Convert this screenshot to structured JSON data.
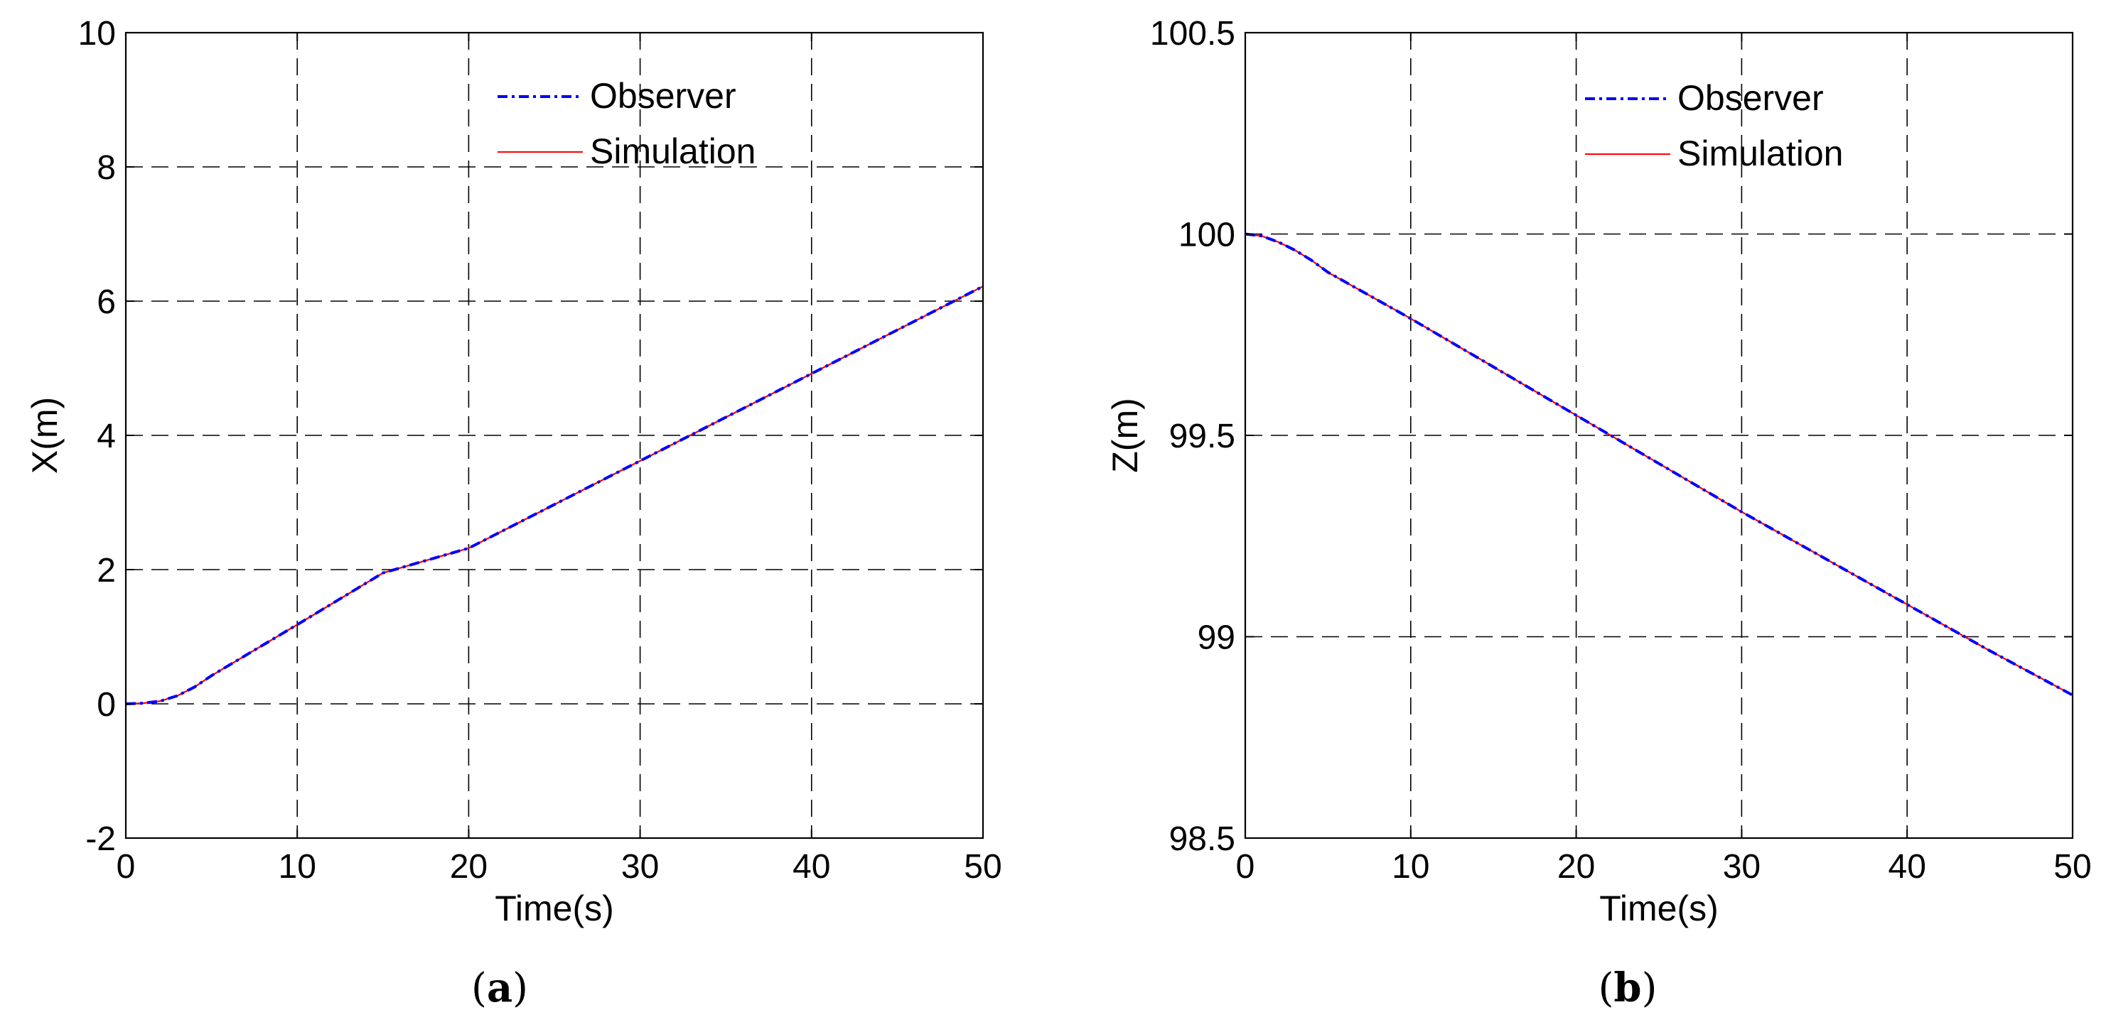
{
  "chart_data": [
    {
      "id": "a",
      "type": "line",
      "caption_letter": "a",
      "xlabel": "Time(s)",
      "ylabel": "X(m)",
      "xlim": [
        0,
        50
      ],
      "ylim": [
        -2,
        10
      ],
      "xticks": [
        0,
        10,
        20,
        30,
        40,
        50
      ],
      "yticks": [
        -2,
        0,
        2,
        4,
        6,
        8,
        10
      ],
      "grid": true,
      "legend_position": "top-right",
      "series": [
        {
          "name": "Observer",
          "color": "#0000ff",
          "style": "dash-dot",
          "x": [
            0,
            1,
            2,
            3,
            4,
            5,
            10,
            15,
            20,
            25,
            30,
            35,
            40,
            45,
            50
          ],
          "y": [
            0,
            0.01,
            0.04,
            0.12,
            0.25,
            0.42,
            1.18,
            1.95,
            2.32,
            2.97,
            3.62,
            4.27,
            4.92,
            5.57,
            6.22
          ]
        },
        {
          "name": "Simulation",
          "color": "#ff0000",
          "style": "solid",
          "x": [
            0,
            1,
            2,
            3,
            4,
            5,
            10,
            15,
            20,
            25,
            30,
            35,
            40,
            45,
            50
          ],
          "y": [
            0,
            0.01,
            0.04,
            0.12,
            0.25,
            0.42,
            1.18,
            1.95,
            2.32,
            2.97,
            3.62,
            4.27,
            4.92,
            5.57,
            6.22
          ]
        }
      ]
    },
    {
      "id": "b",
      "type": "line",
      "caption_letter": "b",
      "xlabel": "Time(s)",
      "ylabel": "Z(m)",
      "xlim": [
        0,
        50
      ],
      "ylim": [
        98.5,
        100.5
      ],
      "xticks": [
        0,
        10,
        20,
        30,
        40,
        50
      ],
      "yticks": [
        98.5,
        99,
        99.5,
        100,
        100.5
      ],
      "grid": true,
      "legend_position": "top-right",
      "series": [
        {
          "name": "Observer",
          "color": "#0000ff",
          "style": "dash-dot",
          "x": [
            0,
            1,
            2,
            3,
            4,
            5,
            10,
            15,
            20,
            25,
            30,
            35,
            40,
            45,
            50
          ],
          "y": [
            100,
            99.995,
            99.98,
            99.96,
            99.935,
            99.905,
            99.79,
            99.67,
            99.55,
            99.43,
            99.31,
            99.195,
            99.08,
            98.965,
            98.855
          ]
        },
        {
          "name": "Simulation",
          "color": "#ff0000",
          "style": "solid",
          "x": [
            0,
            1,
            2,
            3,
            4,
            5,
            10,
            15,
            20,
            25,
            30,
            35,
            40,
            45,
            50
          ],
          "y": [
            100,
            99.995,
            99.98,
            99.96,
            99.935,
            99.905,
            99.79,
            99.67,
            99.55,
            99.43,
            99.31,
            99.195,
            99.08,
            98.965,
            98.855
          ]
        }
      ]
    }
  ]
}
